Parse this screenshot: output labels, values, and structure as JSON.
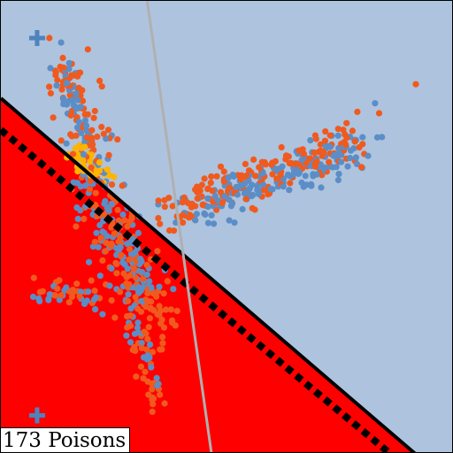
{
  "chart_data": {
    "type": "scatter",
    "title": "",
    "xlabel": "",
    "ylabel": "",
    "xlim": [
      0,
      1
    ],
    "ylim": [
      0,
      1
    ],
    "grid": false,
    "legend": "none",
    "colors": {
      "region_a": "#aec3de",
      "region_b": "#ff0000",
      "series_blue": "#5b8ec7",
      "series_orange": "#f05a1e",
      "series_gold": "#ffb400",
      "decision_boundary": "#000000",
      "poisoned_boundary": "#000000",
      "reference_line": "#b0b0b0",
      "marker_plus": "#4f83bd"
    },
    "regions": [
      {
        "id": "upper",
        "color_key": "region_a",
        "polygon": [
          [
            0,
            1
          ],
          [
            1,
            1
          ],
          [
            1,
            0
          ],
          [
            0.915,
            0
          ],
          [
            0,
            0.785
          ]
        ]
      },
      {
        "id": "lower",
        "color_key": "region_b",
        "polygon": [
          [
            0,
            0.785
          ],
          [
            0.915,
            0
          ],
          [
            0,
            0
          ]
        ]
      }
    ],
    "lines": [
      {
        "id": "decision-boundary",
        "style": "solid",
        "color_key": "decision_boundary",
        "points": [
          [
            0,
            0.785
          ],
          [
            0.915,
            0
          ]
        ]
      },
      {
        "id": "poisoned-boundary",
        "style": "dashed",
        "color_key": "poisoned_boundary",
        "points": [
          [
            0,
            0.715
          ],
          [
            0.86,
            0
          ]
        ]
      },
      {
        "id": "reference-line",
        "style": "solid",
        "color_key": "reference_line",
        "points": [
          [
            0.323,
            1
          ],
          [
            0.465,
            0
          ]
        ]
      }
    ],
    "plus_markers": [
      {
        "x": 0.08,
        "y": 0.918
      },
      {
        "x": 0.08,
        "y": 0.085
      }
    ],
    "clusters": [
      {
        "series": "series_blue",
        "n": 160,
        "x1": 0.4,
        "y1": 0.53,
        "x2": 0.8,
        "y2": 0.68,
        "spread": 0.022
      },
      {
        "series": "series_orange",
        "n": 170,
        "x1": 0.36,
        "y1": 0.52,
        "x2": 0.79,
        "y2": 0.7,
        "spread": 0.024
      },
      {
        "series": "series_blue",
        "n": 55,
        "x1": 0.14,
        "y1": 0.84,
        "x2": 0.22,
        "y2": 0.62,
        "spread": 0.018
      },
      {
        "series": "series_orange",
        "n": 95,
        "x1": 0.13,
        "y1": 0.86,
        "x2": 0.22,
        "y2": 0.62,
        "spread": 0.02
      },
      {
        "series": "series_blue",
        "n": 110,
        "x1": 0.2,
        "y1": 0.59,
        "x2": 0.33,
        "y2": 0.32,
        "spread": 0.032
      },
      {
        "series": "series_orange",
        "n": 130,
        "x1": 0.21,
        "y1": 0.58,
        "x2": 0.35,
        "y2": 0.28,
        "spread": 0.032
      },
      {
        "series": "series_blue",
        "n": 20,
        "x1": 0.29,
        "y1": 0.3,
        "x2": 0.34,
        "y2": 0.17,
        "spread": 0.012
      },
      {
        "series": "series_orange",
        "n": 30,
        "x1": 0.29,
        "y1": 0.3,
        "x2": 0.35,
        "y2": 0.08,
        "spread": 0.012
      },
      {
        "series": "series_blue",
        "n": 20,
        "x1": 0.08,
        "y1": 0.36,
        "x2": 0.22,
        "y2": 0.33,
        "spread": 0.015
      },
      {
        "series": "series_orange",
        "n": 22,
        "x1": 0.08,
        "y1": 0.37,
        "x2": 0.22,
        "y2": 0.33,
        "spread": 0.015
      },
      {
        "series": "series_gold",
        "n": 40,
        "x1": 0.16,
        "y1": 0.66,
        "x2": 0.24,
        "y2": 0.61,
        "spread": 0.015
      }
    ],
    "outliers": [
      {
        "series": "series_orange",
        "x": 0.916,
        "y": 0.816
      },
      {
        "series": "series_orange",
        "x": 0.835,
        "y": 0.752
      },
      {
        "series": "series_blue",
        "x": 0.826,
        "y": 0.774
      },
      {
        "series": "series_orange",
        "x": 0.763,
        "y": 0.73
      },
      {
        "series": "series_orange",
        "x": 0.107,
        "y": 0.918
      },
      {
        "series": "series_blue",
        "x": 0.133,
        "y": 0.908
      },
      {
        "series": "series_orange",
        "x": 0.192,
        "y": 0.893
      }
    ]
  },
  "label": {
    "poisons": "173 Poisons"
  }
}
